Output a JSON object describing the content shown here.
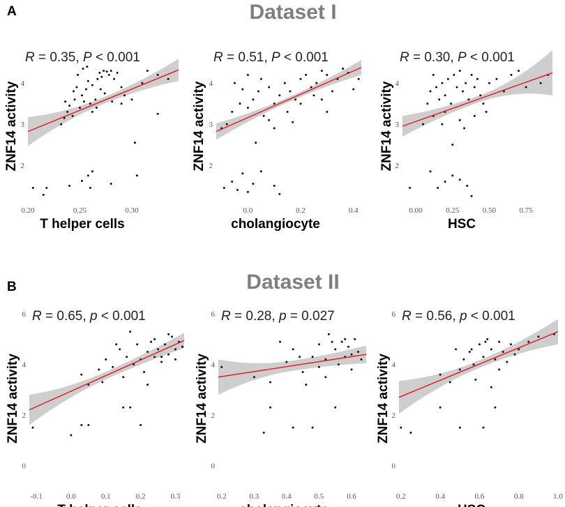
{
  "figure": {
    "panel_a_letter": "A",
    "panel_b_letter": "B",
    "dataset_1_title": "Dataset I",
    "dataset_2_title": "Dataset II"
  },
  "colors": {
    "fit_line": "#e8141b",
    "ci_band": "#bdbdbd",
    "points": "#111111",
    "title": "#7f7f7f"
  },
  "chart_data": [
    {
      "type": "scatter",
      "panel": "A",
      "dataset": "Dataset I",
      "xlabel": "T helper cells",
      "ylabel": "ZNF14 activity",
      "annotation": {
        "r_sym": "R",
        "r_text": " = 0.35, ",
        "p_sym": "P",
        "p_text": " < 0.001"
      },
      "xlim": [
        0.2,
        0.345
      ],
      "ylim": [
        1.1,
        4.8
      ],
      "xticks": [
        0.2,
        0.25,
        0.3
      ],
      "xtick_labels": [
        "0.20",
        "0.25",
        "0.30"
      ],
      "yticks": [
        2,
        3,
        4
      ],
      "ytick_labels": [
        "2",
        "3",
        "4"
      ],
      "fit": {
        "x0": 0.2,
        "y0": 2.82,
        "x1": 0.345,
        "y1": 4.32,
        "ci0": 0.35,
        "cim": 0.08,
        "ci1": 0.27
      },
      "points": [
        [
          0.205,
          1.45
        ],
        [
          0.215,
          1.28
        ],
        [
          0.218,
          1.45
        ],
        [
          0.24,
          1.5
        ],
        [
          0.252,
          1.62
        ],
        [
          0.258,
          1.75
        ],
        [
          0.262,
          1.85
        ],
        [
          0.26,
          1.45
        ],
        [
          0.28,
          1.55
        ],
        [
          0.305,
          1.75
        ],
        [
          0.303,
          2.55
        ],
        [
          0.325,
          3.25
        ],
        [
          0.232,
          3.0
        ],
        [
          0.235,
          3.15
        ],
        [
          0.238,
          3.3
        ],
        [
          0.24,
          3.45
        ],
        [
          0.243,
          3.2
        ],
        [
          0.245,
          3.6
        ],
        [
          0.247,
          3.9
        ],
        [
          0.25,
          3.4
        ],
        [
          0.252,
          3.7
        ],
        [
          0.254,
          3.55
        ],
        [
          0.256,
          3.85
        ],
        [
          0.258,
          4.05
        ],
        [
          0.26,
          3.5
        ],
        [
          0.262,
          3.95
        ],
        [
          0.265,
          3.6
        ],
        [
          0.267,
          4.1
        ],
        [
          0.269,
          4.25
        ],
        [
          0.271,
          4.15
        ],
        [
          0.273,
          4.3
        ],
        [
          0.276,
          4.28
        ],
        [
          0.278,
          4.2
        ],
        [
          0.28,
          4.3
        ],
        [
          0.283,
          4.1
        ],
        [
          0.286,
          4.25
        ],
        [
          0.29,
          3.9
        ],
        [
          0.293,
          3.7
        ],
        [
          0.248,
          4.2
        ],
        [
          0.253,
          4.35
        ],
        [
          0.257,
          4.4
        ],
        [
          0.262,
          3.3
        ],
        [
          0.266,
          3.4
        ],
        [
          0.27,
          3.85
        ],
        [
          0.274,
          3.75
        ],
        [
          0.281,
          3.55
        ],
        [
          0.29,
          3.5
        ],
        [
          0.3,
          3.6
        ],
        [
          0.31,
          4.0
        ],
        [
          0.315,
          4.3
        ],
        [
          0.325,
          4.2
        ],
        [
          0.335,
          4.1
        ],
        [
          0.244,
          3.8
        ],
        [
          0.236,
          3.55
        ]
      ]
    },
    {
      "type": "scatter",
      "panel": "A",
      "dataset": "Dataset I",
      "xlabel": "cholangiocyte",
      "ylabel": "ZNF14 activity",
      "annotation": {
        "r_sym": "R",
        "r_text": " = 0.51, ",
        "p_sym": "P",
        "p_text": " < 0.001"
      },
      "xlim": [
        -0.12,
        0.43
      ],
      "ylim": [
        1.1,
        4.8
      ],
      "xticks": [
        0.0,
        0.2,
        0.4
      ],
      "xtick_labels": [
        "0.0",
        "0.2",
        "0.4"
      ],
      "yticks": [
        2,
        3,
        4
      ],
      "ytick_labels": [
        "2",
        "3",
        "4"
      ],
      "fit": {
        "x0": -0.12,
        "y0": 2.82,
        "x1": 0.43,
        "y1": 4.38,
        "ci0": 0.2,
        "cim": 0.06,
        "ci1": 0.18
      },
      "points": [
        [
          -0.09,
          1.45
        ],
        [
          -0.06,
          1.6
        ],
        [
          -0.04,
          1.4
        ],
        [
          -0.02,
          1.8
        ],
        [
          0.0,
          1.35
        ],
        [
          0.02,
          1.55
        ],
        [
          0.05,
          1.85
        ],
        [
          0.1,
          1.5
        ],
        [
          0.12,
          1.3
        ],
        [
          -0.1,
          2.9
        ],
        [
          -0.08,
          3.0
        ],
        [
          -0.06,
          3.3
        ],
        [
          -0.03,
          3.5
        ],
        [
          0.0,
          3.4
        ],
        [
          0.02,
          3.6
        ],
        [
          0.04,
          3.8
        ],
        [
          0.06,
          3.2
        ],
        [
          0.08,
          3.9
        ],
        [
          0.1,
          3.5
        ],
        [
          0.12,
          3.7
        ],
        [
          0.14,
          4.0
        ],
        [
          0.16,
          3.8
        ],
        [
          0.18,
          3.6
        ],
        [
          0.2,
          4.1
        ],
        [
          0.22,
          4.2
        ],
        [
          0.24,
          3.9
        ],
        [
          0.26,
          4.0
        ],
        [
          0.28,
          4.3
        ],
        [
          0.3,
          4.2
        ],
        [
          0.32,
          3.8
        ],
        [
          0.34,
          4.1
        ],
        [
          0.36,
          4.35
        ],
        [
          0.38,
          4.25
        ],
        [
          0.4,
          3.85
        ],
        [
          0.42,
          4.1
        ],
        [
          -0.05,
          4.0
        ],
        [
          0.0,
          4.2
        ],
        [
          0.05,
          4.1
        ],
        [
          0.08,
          3.1
        ],
        [
          0.15,
          3.3
        ],
        [
          0.2,
          3.5
        ],
        [
          0.25,
          3.7
        ],
        [
          0.03,
          2.55
        ],
        [
          0.1,
          2.9
        ],
        [
          0.17,
          3.05
        ],
        [
          0.28,
          3.6
        ],
        [
          0.3,
          3.3
        ],
        [
          -0.02,
          3.85
        ]
      ]
    },
    {
      "type": "scatter",
      "panel": "A",
      "dataset": "Dataset I",
      "xlabel": "HSC",
      "ylabel": "ZNF14 activity",
      "annotation": {
        "r_sym": "R",
        "r_text": " = 0.30, ",
        "p_sym": "P",
        "p_text": " < 0.001"
      },
      "xlim": [
        -0.09,
        0.93
      ],
      "ylim": [
        1.1,
        4.8
      ],
      "xticks": [
        0.0,
        0.25,
        0.5,
        0.75
      ],
      "xtick_labels": [
        "0.00",
        "0.25",
        "0.50",
        "0.75"
      ],
      "yticks": [
        2,
        3,
        4
      ],
      "ytick_labels": [
        "2",
        "3",
        "4"
      ],
      "fit": {
        "x0": -0.09,
        "y0": 2.95,
        "x1": 0.93,
        "y1": 4.25,
        "ci0": 0.25,
        "cim": 0.08,
        "ci1": 0.55
      },
      "points": [
        [
          -0.04,
          1.45
        ],
        [
          0.1,
          1.85
        ],
        [
          0.15,
          1.45
        ],
        [
          0.2,
          1.6
        ],
        [
          0.25,
          1.75
        ],
        [
          0.3,
          1.65
        ],
        [
          0.35,
          1.5
        ],
        [
          0.38,
          1.25
        ],
        [
          0.05,
          3.0
        ],
        [
          0.08,
          3.5
        ],
        [
          0.1,
          3.8
        ],
        [
          0.12,
          3.2
        ],
        [
          0.14,
          3.9
        ],
        [
          0.16,
          3.6
        ],
        [
          0.18,
          4.0
        ],
        [
          0.2,
          3.7
        ],
        [
          0.22,
          4.1
        ],
        [
          0.24,
          3.5
        ],
        [
          0.26,
          4.2
        ],
        [
          0.28,
          3.9
        ],
        [
          0.3,
          4.3
        ],
        [
          0.32,
          3.8
        ],
        [
          0.34,
          4.0
        ],
        [
          0.36,
          3.6
        ],
        [
          0.38,
          4.2
        ],
        [
          0.4,
          3.9
        ],
        [
          0.42,
          4.1
        ],
        [
          0.44,
          3.7
        ],
        [
          0.46,
          3.5
        ],
        [
          0.48,
          3.3
        ],
        [
          0.5,
          4.0
        ],
        [
          0.55,
          4.1
        ],
        [
          0.6,
          3.8
        ],
        [
          0.65,
          4.2
        ],
        [
          0.7,
          4.3
        ],
        [
          0.75,
          3.9
        ],
        [
          0.85,
          4.0
        ],
        [
          0.9,
          4.2
        ],
        [
          0.12,
          4.2
        ],
        [
          0.2,
          3.3
        ],
        [
          0.25,
          2.5
        ],
        [
          0.33,
          2.9
        ],
        [
          0.4,
          3.2
        ],
        [
          0.3,
          3.1
        ],
        [
          0.18,
          3.0
        ]
      ]
    },
    {
      "type": "scatter",
      "panel": "B",
      "dataset": "Dataset II",
      "xlabel": "T helper cells",
      "ylabel": "ZNF14 activity",
      "annotation": {
        "r_sym": "R",
        "r_text": " = 0.65, ",
        "p_sym": "p",
        "p_text": " < 0.001"
      },
      "xlim": [
        -0.12,
        0.325
      ],
      "ylim": [
        -0.9,
        6.2
      ],
      "xticks": [
        -0.1,
        0.0,
        0.1,
        0.2,
        0.3
      ],
      "xtick_labels": [
        "-0.1",
        "0.0",
        "0.1",
        "0.2",
        "0.3"
      ],
      "yticks": [
        0,
        2,
        4,
        6
      ],
      "ytick_labels": [
        "0",
        "2",
        "4",
        "6"
      ],
      "fit": {
        "x0": -0.12,
        "y0": 2.2,
        "x1": 0.325,
        "y1": 4.95,
        "ci0": 0.6,
        "cim": 0.15,
        "ci1": 0.3
      },
      "points": [
        [
          -0.11,
          1.5
        ],
        [
          0.0,
          1.2
        ],
        [
          0.03,
          1.6
        ],
        [
          0.05,
          1.6
        ],
        [
          0.15,
          2.3
        ],
        [
          0.17,
          2.3
        ],
        [
          0.2,
          1.6
        ],
        [
          0.03,
          3.6
        ],
        [
          0.05,
          3.2
        ],
        [
          0.08,
          3.8
        ],
        [
          0.1,
          4.2
        ],
        [
          0.12,
          3.9
        ],
        [
          0.14,
          4.6
        ],
        [
          0.16,
          4.3
        ],
        [
          0.17,
          5.3
        ],
        [
          0.18,
          4.0
        ],
        [
          0.19,
          4.8
        ],
        [
          0.2,
          4.2
        ],
        [
          0.21,
          3.7
        ],
        [
          0.22,
          4.5
        ],
        [
          0.23,
          4.9
        ],
        [
          0.24,
          4.3
        ],
        [
          0.25,
          4.6
        ],
        [
          0.26,
          4.1
        ],
        [
          0.27,
          4.8
        ],
        [
          0.28,
          4.4
        ],
        [
          0.29,
          5.1
        ],
        [
          0.3,
          4.6
        ],
        [
          0.31,
          4.9
        ],
        [
          0.32,
          4.7
        ],
        [
          0.13,
          4.8
        ],
        [
          0.15,
          3.5
        ],
        [
          0.24,
          5.0
        ],
        [
          0.28,
          5.2
        ],
        [
          0.22,
          3.2
        ],
        [
          0.09,
          3.3
        ],
        [
          0.26,
          4.3
        ],
        [
          0.3,
          4.2
        ]
      ]
    },
    {
      "type": "scatter",
      "panel": "B",
      "dataset": "Dataset II",
      "xlabel": "cholangiocyte",
      "ylabel": "ZNF14 activity",
      "annotation": {
        "r_sym": "R",
        "r_text": " = 0.28, ",
        "p_sym": "p",
        "p_text": " = 0.027"
      },
      "xlim": [
        0.19,
        0.645
      ],
      "ylim": [
        -0.9,
        6.2
      ],
      "xticks": [
        0.2,
        0.3,
        0.4,
        0.5,
        0.6
      ],
      "xtick_labels": [
        "0.2",
        "0.3",
        "0.4",
        "0.5",
        "0.6"
      ],
      "yticks": [
        0,
        2,
        4,
        6
      ],
      "ytick_labels": [
        "0",
        "2",
        "4",
        "6"
      ],
      "fit": {
        "x0": 0.19,
        "y0": 3.5,
        "x1": 0.645,
        "y1": 4.4,
        "ci0": 0.7,
        "cim": 0.2,
        "ci1": 0.35
      },
      "points": [
        [
          0.2,
          3.9
        ],
        [
          0.33,
          1.3
        ],
        [
          0.42,
          1.5
        ],
        [
          0.48,
          1.5
        ],
        [
          0.35,
          2.3
        ],
        [
          0.55,
          2.3
        ],
        [
          0.3,
          3.5
        ],
        [
          0.35,
          3.3
        ],
        [
          0.4,
          4.1
        ],
        [
          0.42,
          4.6
        ],
        [
          0.45,
          3.7
        ],
        [
          0.48,
          4.3
        ],
        [
          0.5,
          4.8
        ],
        [
          0.52,
          4.2
        ],
        [
          0.53,
          5.2
        ],
        [
          0.55,
          4.6
        ],
        [
          0.56,
          4.0
        ],
        [
          0.57,
          4.9
        ],
        [
          0.58,
          4.3
        ],
        [
          0.59,
          4.7
        ],
        [
          0.6,
          4.4
        ],
        [
          0.61,
          5.0
        ],
        [
          0.62,
          4.5
        ],
        [
          0.63,
          4.2
        ],
        [
          0.38,
          4.9
        ],
        [
          0.46,
          3.2
        ],
        [
          0.5,
          3.9
        ],
        [
          0.54,
          4.9
        ],
        [
          0.58,
          5.0
        ],
        [
          0.6,
          3.8
        ],
        [
          0.44,
          4.3
        ],
        [
          0.52,
          3.5
        ]
      ]
    },
    {
      "type": "scatter",
      "panel": "B",
      "dataset": "Dataset II",
      "xlabel": "HSC",
      "ylabel": "ZNF14 activity",
      "annotation": {
        "r_sym": "R",
        "r_text": " = 0.56, ",
        "p_sym": "p",
        "p_text": " < 0.001"
      },
      "xlim": [
        0.19,
        1.0
      ],
      "ylim": [
        -0.9,
        6.2
      ],
      "xticks": [
        0.2,
        0.4,
        0.6,
        0.8,
        1.0
      ],
      "xtick_labels": [
        "0.2",
        "0.4",
        "0.6",
        "0.8",
        "1.0"
      ],
      "yticks": [
        0,
        2,
        4,
        6
      ],
      "ytick_labels": [
        "0",
        "2",
        "4",
        "6"
      ],
      "fit": {
        "x0": 0.19,
        "y0": 2.7,
        "x1": 1.0,
        "y1": 5.3,
        "ci0": 0.65,
        "cim": 0.15,
        "ci1": 0.5
      },
      "points": [
        [
          0.2,
          1.5
        ],
        [
          0.25,
          1.3
        ],
        [
          0.4,
          2.3
        ],
        [
          0.5,
          1.5
        ],
        [
          0.68,
          2.3
        ],
        [
          0.62,
          1.5
        ],
        [
          0.4,
          3.6
        ],
        [
          0.45,
          3.3
        ],
        [
          0.5,
          3.8
        ],
        [
          0.52,
          4.2
        ],
        [
          0.55,
          4.5
        ],
        [
          0.57,
          4.0
        ],
        [
          0.6,
          4.8
        ],
        [
          0.62,
          4.3
        ],
        [
          0.64,
          5.0
        ],
        [
          0.66,
          4.6
        ],
        [
          0.68,
          4.2
        ],
        [
          0.7,
          4.9
        ],
        [
          0.72,
          4.5
        ],
        [
          0.74,
          4.1
        ],
        [
          0.76,
          4.8
        ],
        [
          0.78,
          4.4
        ],
        [
          0.8,
          4.6
        ],
        [
          0.85,
          4.9
        ],
        [
          0.9,
          5.1
        ],
        [
          0.98,
          5.2
        ],
        [
          0.58,
          3.4
        ],
        [
          0.48,
          4.6
        ],
        [
          0.66,
          3.1
        ],
        [
          0.7,
          3.8
        ],
        [
          0.56,
          4.6
        ],
        [
          0.63,
          4.9
        ]
      ]
    }
  ]
}
